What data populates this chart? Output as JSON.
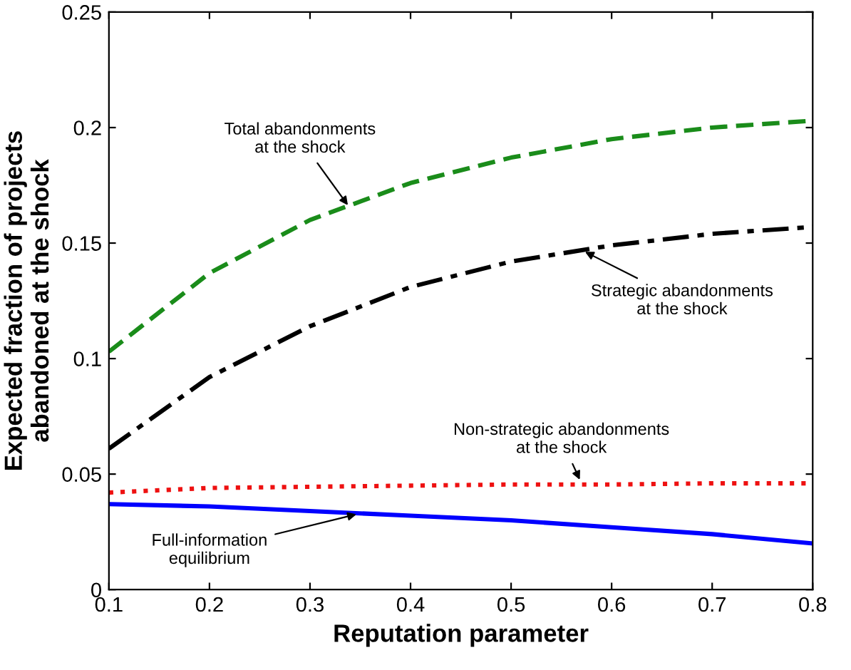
{
  "chart_data": {
    "type": "line",
    "xlabel": "Reputation parameter",
    "ylabel": "Expected fraction of projects\nabandoned at the shock",
    "x": [
      0.1,
      0.2,
      0.3,
      0.4,
      0.5,
      0.6,
      0.7,
      0.8
    ],
    "series": [
      {
        "color": "#1a8c1a",
        "line_style": "dashed",
        "values": [
          0.103,
          0.137,
          0.16,
          0.176,
          0.187,
          0.195,
          0.2,
          0.203
        ]
      },
      {
        "color": "#000000",
        "line_style": "dashdot",
        "values": [
          0.061,
          0.092,
          0.114,
          0.131,
          0.142,
          0.149,
          0.154,
          0.157
        ]
      },
      {
        "color": "#ee1111",
        "line_style": "dotted",
        "values": [
          0.042,
          0.044,
          0.0445,
          0.045,
          0.0455,
          0.0455,
          0.046,
          0.046
        ]
      },
      {
        "color": "#0000ff",
        "line_style": "solid",
        "values": [
          0.037,
          0.036,
          0.034,
          0.032,
          0.03,
          0.027,
          0.024,
          0.02
        ]
      }
    ],
    "annotations": [
      {
        "text": "Total abandonments\nat the shock",
        "x": 0.34,
        "y": 0.165
      },
      {
        "text": "Strategic abandonments\nat the shock",
        "x": 0.57,
        "y": 0.147
      },
      {
        "text": "Non-strategic abandonments\nat the shock",
        "x": 0.57,
        "y": 0.046
      },
      {
        "text": "Full-information\nequilibrium",
        "x": 0.35,
        "y": 0.033
      }
    ],
    "xlim": [
      0.1,
      0.8
    ],
    "ylim": [
      0,
      0.25
    ],
    "xticks": [
      0.1,
      0.2,
      0.3,
      0.4,
      0.5,
      0.6,
      0.7,
      0.8
    ],
    "yticks": [
      0,
      0.05,
      0.1,
      0.15,
      0.2,
      0.25
    ],
    "grid": false,
    "legend": false,
    "marker": "none"
  }
}
